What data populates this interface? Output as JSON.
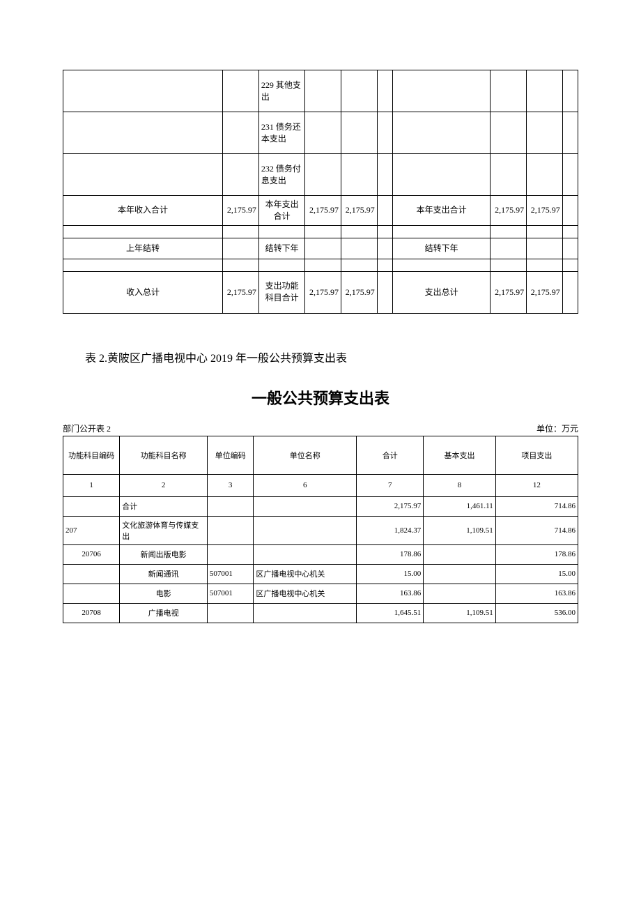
{
  "table1": {
    "col_widths": [
      "31%",
      "7%",
      "9%",
      "7%",
      "7%",
      "3%",
      "19%",
      "7%",
      "7%",
      "3%"
    ],
    "rows": [
      {
        "type": "tall",
        "cells": [
          "",
          "",
          "229 其他支出",
          "",
          "",
          "",
          "",
          "",
          "",
          ""
        ]
      },
      {
        "type": "tall",
        "cells": [
          "",
          "",
          "231 债务还本支出",
          "",
          "",
          "",
          "",
          "",
          "",
          ""
        ]
      },
      {
        "type": "tall",
        "cells": [
          "",
          "",
          "232 债务付息支出",
          "",
          "",
          "",
          "",
          "",
          "",
          ""
        ]
      },
      {
        "type": "normal",
        "cells": [
          "本年收入合计",
          "2,175.97",
          "本年支出合计",
          "2,175.97",
          "2,175.97",
          "",
          "本年支出合计",
          "2,175.97",
          "2,175.97",
          ""
        ],
        "align": [
          "center",
          "right",
          "center",
          "right",
          "right",
          "",
          "center",
          "right",
          "right",
          ""
        ]
      },
      {
        "type": "spacer",
        "cells": [
          "",
          "",
          "",
          "",
          "",
          "",
          "",
          "",
          "",
          ""
        ]
      },
      {
        "type": "normal",
        "cells": [
          "上年结转",
          "",
          "结转下年",
          "",
          "",
          "",
          "结转下年",
          "",
          "",
          ""
        ],
        "align": [
          "center",
          "",
          "center",
          "",
          "",
          "",
          "center",
          "",
          "",
          ""
        ]
      },
      {
        "type": "spacer",
        "cells": [
          "",
          "",
          "",
          "",
          "",
          "",
          "",
          "",
          "",
          ""
        ]
      },
      {
        "type": "tall",
        "cells": [
          "收入总计",
          "2,175.97",
          "支出功能科目合计",
          "2,175.97",
          "2,175.97",
          "",
          "支出总计",
          "2,175.97",
          "2,175.97",
          ""
        ],
        "align": [
          "center",
          "right",
          "center",
          "right",
          "right",
          "",
          "center",
          "right",
          "right",
          ""
        ]
      }
    ]
  },
  "section": {
    "title": "表 2.黄陂区广播电视中心 2019 年一般公共预算支出表"
  },
  "table2": {
    "title": "一般公共预算支出表",
    "meta_left": "部门公开表 2",
    "meta_right": "单位：万元",
    "col_widths": [
      "11%",
      "17%",
      "9%",
      "20%",
      "13%",
      "14%",
      "16%"
    ],
    "headers": [
      "功能科目编码",
      "功能科目名称",
      "单位编码",
      "单位名称",
      "合计",
      "基本支出",
      "项目支出"
    ],
    "col_nums": [
      "1",
      "2",
      "3",
      "6",
      "7",
      "8",
      "12"
    ],
    "data_rows": [
      {
        "code": "",
        "name": "合计",
        "unit_code": "",
        "unit_name": "",
        "total": "2,175.97",
        "basic": "1,461.11",
        "project": "714.86",
        "code_align": "center",
        "name_align": "left"
      },
      {
        "code": "207",
        "name": "文化旅游体育与传媒支出",
        "unit_code": "",
        "unit_name": "",
        "total": "1,824.37",
        "basic": "1,109.51",
        "project": "714.86",
        "code_align": "left",
        "name_align": "left"
      },
      {
        "code": "20706",
        "name": "新闻出版电影",
        "unit_code": "",
        "unit_name": "",
        "total": "178.86",
        "basic": "",
        "project": "178.86",
        "code_align": "center",
        "name_align": "center"
      },
      {
        "code": "",
        "name": "新闻通讯",
        "unit_code": "507001",
        "unit_name": "区广播电视中心机关",
        "total": "15.00",
        "basic": "",
        "project": "15.00",
        "code_align": "center",
        "name_align": "center"
      },
      {
        "code": "",
        "name": "电影",
        "unit_code": "507001",
        "unit_name": "区广播电视中心机关",
        "total": "163.86",
        "basic": "",
        "project": "163.86",
        "code_align": "center",
        "name_align": "center"
      },
      {
        "code": "20708",
        "name": "广播电视",
        "unit_code": "",
        "unit_name": "",
        "total": "1,645.51",
        "basic": "1,109.51",
        "project": "536.00",
        "code_align": "center",
        "name_align": "center"
      }
    ]
  }
}
